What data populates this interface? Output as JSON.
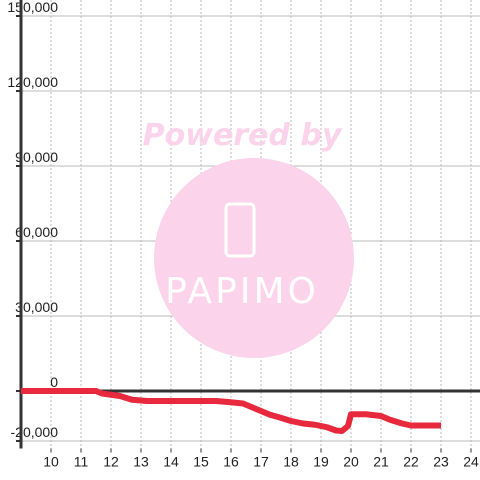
{
  "chart_data": {
    "type": "line",
    "annotations": [
      "Powered by",
      "PAPIMO"
    ],
    "x": [
      9,
      11.5,
      11.7,
      12.3,
      12.7,
      13.2,
      14,
      15,
      15.5,
      16,
      16.4,
      16.7,
      17,
      17.3,
      17.6,
      18,
      18.4,
      18.8,
      19.2,
      19.5,
      19.7,
      19.9,
      20,
      20.5,
      21,
      21.3,
      21.7,
      22,
      23
    ],
    "series": [
      {
        "color": "#e8283c",
        "values": [
          0,
          0,
          -1000,
          -2000,
          -3500,
          -4000,
          -4000,
          -4000,
          -4000,
          -4500,
          -5000,
          -6500,
          -8000,
          -9500,
          -10500,
          -12000,
          -13000,
          -13500,
          -14500,
          -15800,
          -16000,
          -14000,
          -9300,
          -9300,
          -10000,
          -11500,
          -13000,
          -13800,
          -13800
        ]
      }
    ],
    "xlim": [
      9,
      24.3
    ],
    "ylim": [
      -23000,
      150000
    ],
    "xticks": [
      10,
      11,
      12,
      13,
      14,
      15,
      16,
      17,
      18,
      19,
      20,
      21,
      22,
      23,
      24
    ],
    "yticks": [
      {
        "value": -20000,
        "label": "-20,000"
      },
      0,
      {
        "value": 30000,
        "label": "30,000"
      },
      {
        "value": 60000,
        "label": "60,000"
      },
      {
        "value": 90000,
        "label": "90,000"
      },
      {
        "value": 120000,
        "label": "120,000"
      },
      {
        "value": 150000,
        "label": "150,000"
      }
    ],
    "grid": true
  }
}
